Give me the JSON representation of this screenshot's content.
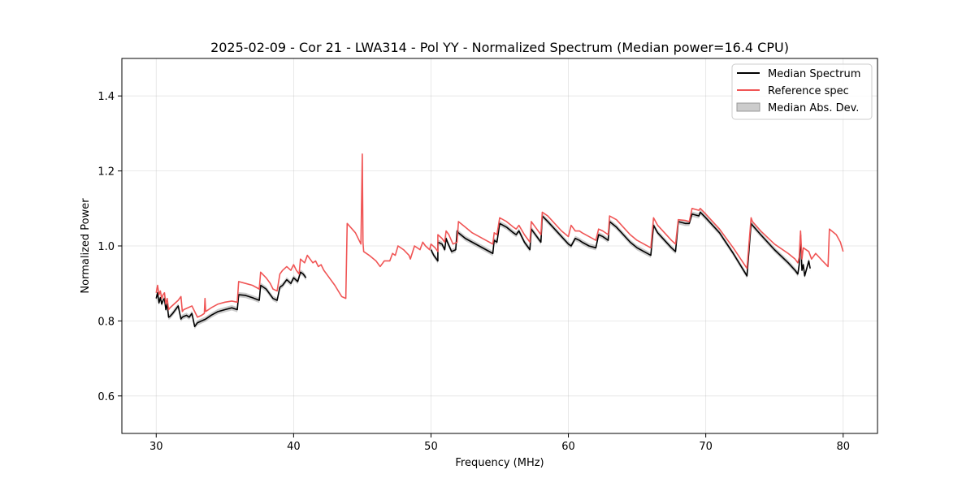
{
  "chart_data": {
    "type": "line",
    "title": "2025-02-09 - Cor 21 - LWA314 - Pol YY - Normalized Spectrum (Median power=16.4 CPU)",
    "xlabel": "Frequency (MHz)",
    "ylabel": "Normalized Power",
    "xlim": [
      27.5,
      82.5
    ],
    "ylim": [
      0.5,
      1.5
    ],
    "xticks": [
      30,
      40,
      50,
      60,
      70,
      80
    ],
    "yticks": [
      0.6,
      0.8,
      1.0,
      1.2,
      1.4
    ],
    "xtick_labels": [
      "30",
      "40",
      "50",
      "60",
      "70",
      "80"
    ],
    "ytick_labels": [
      "0.6",
      "0.8",
      "1.0",
      "1.2",
      "1.4"
    ],
    "grid": true,
    "legend": {
      "placement": "top-right",
      "entries": [
        "Median Spectrum",
        "Reference spec",
        "Median Abs. Dev."
      ]
    },
    "series": [
      {
        "name": "Median Spectrum",
        "color": "#000000",
        "segments": [
          {
            "x": [
              30.0,
              30.1,
              30.2,
              30.3,
              30.4,
              30.5,
              30.6,
              30.7,
              30.8,
              30.9,
              31.0,
              31.2,
              31.4,
              31.6,
              31.8,
              31.9,
              32.0,
              32.2,
              32.4,
              32.6,
              32.8,
              33.0,
              33.3,
              33.6,
              34.0,
              34.5,
              35.0,
              35.5,
              35.9,
              36.0,
              36.5,
              37.0,
              37.5,
              37.6,
              38.0,
              38.3,
              38.5,
              38.8,
              39.0,
              39.2,
              39.5,
              39.8,
              40.0,
              40.3,
              40.5,
              40.7,
              40.9
            ],
            "y": [
              0.86,
              0.875,
              0.848,
              0.862,
              0.845,
              0.855,
              0.86,
              0.83,
              0.845,
              0.81,
              0.812,
              0.82,
              0.83,
              0.84,
              0.805,
              0.81,
              0.812,
              0.815,
              0.81,
              0.82,
              0.785,
              0.795,
              0.8,
              0.805,
              0.815,
              0.825,
              0.83,
              0.835,
              0.83,
              0.87,
              0.868,
              0.862,
              0.855,
              0.895,
              0.885,
              0.87,
              0.86,
              0.855,
              0.89,
              0.895,
              0.91,
              0.9,
              0.915,
              0.905,
              0.93,
              0.925,
              0.915
            ]
          },
          {
            "x": [
              50.0,
              50.2,
              50.5,
              50.5,
              50.8,
              51.0,
              51.1,
              51.2,
              51.5,
              51.8,
              51.9,
              52.0,
              52.5,
              53.0,
              53.5,
              54.0,
              54.5,
              54.6,
              54.8,
              55.0,
              55.5,
              56.0,
              56.2,
              56.4,
              56.8,
              57.2,
              57.3,
              57.5,
              58.0,
              58.1,
              58.5,
              59.0,
              59.5,
              60.0,
              60.2,
              60.5,
              60.8,
              61.0,
              61.5,
              62.0,
              62.2,
              62.5,
              62.9,
              63.0,
              63.5,
              64.0,
              64.5,
              65.0,
              65.5,
              66.0,
              66.2,
              66.5,
              67.0,
              67.5,
              67.8,
              68.0,
              68.5,
              68.8,
              69.0,
              69.5,
              69.6,
              70.0,
              71.0,
              72.0,
              73.0,
              73.3,
              73.4,
              74.0,
              75.0,
              76.0,
              76.5,
              76.7,
              76.8,
              76.9,
              77.0,
              77.1,
              77.2,
              77.5,
              77.6
            ],
            "y": [
              0.99,
              0.975,
              0.96,
              1.01,
              1.005,
              0.99,
              1.02,
              1.01,
              0.985,
              0.99,
              1.04,
              1.035,
              1.02,
              1.01,
              1.0,
              0.99,
              0.98,
              1.015,
              1.01,
              1.06,
              1.05,
              1.035,
              1.03,
              1.04,
              1.01,
              0.99,
              1.045,
              1.035,
              1.01,
              1.08,
              1.065,
              1.045,
              1.025,
              1.005,
              1.0,
              1.02,
              1.015,
              1.01,
              1.0,
              0.995,
              1.03,
              1.025,
              1.015,
              1.065,
              1.05,
              1.03,
              1.01,
              0.995,
              0.985,
              0.975,
              1.055,
              1.035,
              1.015,
              0.995,
              0.985,
              1.065,
              1.06,
              1.06,
              1.085,
              1.08,
              1.09,
              1.075,
              1.035,
              0.98,
              0.92,
              1.06,
              1.055,
              1.03,
              0.99,
              0.955,
              0.935,
              0.925,
              0.95,
              1.03,
              0.935,
              0.95,
              0.92,
              0.96,
              0.94
            ]
          }
        ]
      },
      {
        "name": "Reference spec",
        "color": "#f05555",
        "segments": [
          {
            "x": [
              30.0,
              30.1,
              30.2,
              30.3,
              30.4,
              30.5,
              30.6,
              30.7,
              30.8,
              30.9,
              31.0,
              31.3,
              31.6,
              31.8,
              31.9,
              32.0,
              32.3,
              32.6,
              32.8,
              33.0,
              33.3,
              33.5,
              33.55,
              33.6,
              34.0,
              34.5,
              35.0,
              35.5,
              35.9,
              36.0,
              36.5,
              37.0,
              37.5,
              37.6,
              38.0,
              38.3,
              38.5,
              38.8,
              39.0,
              39.2,
              39.5,
              39.8,
              40.0,
              40.2,
              40.4,
              40.5,
              40.8,
              41.0,
              41.2,
              41.4,
              41.6,
              41.8,
              42.0,
              42.2,
              42.5,
              43.0,
              43.5,
              43.8,
              43.9,
              44.5,
              44.9,
              45.0,
              45.05,
              45.1,
              45.5,
              46.0,
              46.3,
              46.6,
              47.0,
              47.2,
              47.4,
              47.6,
              48.0,
              48.4,
              48.5,
              48.8,
              49.2,
              49.4,
              49.6,
              49.9,
              50.0,
              50.3,
              50.5,
              50.5,
              50.8,
              51.0,
              51.1,
              51.3,
              51.6,
              51.9,
              52.0,
              52.5,
              53.0,
              53.5,
              54.0,
              54.5,
              54.6,
              54.8,
              55.0,
              55.5,
              56.0,
              56.2,
              56.4,
              56.8,
              57.2,
              57.3,
              57.5,
              58.0,
              58.1,
              58.5,
              59.0,
              59.5,
              60.0,
              60.2,
              60.5,
              60.8,
              61.0,
              61.5,
              62.0,
              62.2,
              62.5,
              62.9,
              63.0,
              63.5,
              64.0,
              64.5,
              65.0,
              65.5,
              66.0,
              66.2,
              66.5,
              67.0,
              67.5,
              67.8,
              68.0,
              68.5,
              68.8,
              69.0,
              69.5,
              69.6,
              70.0,
              71.0,
              72.0,
              73.0,
              73.3,
              73.4,
              74.0,
              75.0,
              76.0,
              76.5,
              76.7,
              76.8,
              76.9,
              77.0,
              77.1,
              77.5,
              77.7,
              78.0,
              78.5,
              78.9,
              79.0,
              79.5,
              79.8,
              80.0
            ],
            "y": [
              0.875,
              0.895,
              0.87,
              0.88,
              0.86,
              0.87,
              0.875,
              0.845,
              0.86,
              0.83,
              0.835,
              0.845,
              0.855,
              0.865,
              0.825,
              0.83,
              0.835,
              0.84,
              0.825,
              0.81,
              0.815,
              0.82,
              0.86,
              0.825,
              0.835,
              0.845,
              0.85,
              0.853,
              0.85,
              0.905,
              0.9,
              0.895,
              0.885,
              0.93,
              0.915,
              0.9,
              0.885,
              0.88,
              0.925,
              0.935,
              0.945,
              0.935,
              0.95,
              0.935,
              0.925,
              0.965,
              0.955,
              0.975,
              0.965,
              0.955,
              0.96,
              0.945,
              0.95,
              0.935,
              0.92,
              0.895,
              0.865,
              0.86,
              1.06,
              1.035,
              1.005,
              1.245,
              1.01,
              0.985,
              0.975,
              0.96,
              0.945,
              0.96,
              0.96,
              0.98,
              0.975,
              1.0,
              0.99,
              0.975,
              0.965,
              1.0,
              0.99,
              1.01,
              1.0,
              0.99,
              1.005,
              0.995,
              0.985,
              1.03,
              1.02,
              1.01,
              1.04,
              1.03,
              1.005,
              1.01,
              1.065,
              1.05,
              1.035,
              1.025,
              1.015,
              1.005,
              1.035,
              1.03,
              1.075,
              1.065,
              1.05,
              1.045,
              1.055,
              1.03,
              1.01,
              1.065,
              1.055,
              1.03,
              1.09,
              1.08,
              1.06,
              1.04,
              1.025,
              1.055,
              1.04,
              1.04,
              1.035,
              1.025,
              1.015,
              1.045,
              1.04,
              1.03,
              1.08,
              1.07,
              1.05,
              1.03,
              1.015,
              1.005,
              0.995,
              1.075,
              1.055,
              1.035,
              1.015,
              1.005,
              1.07,
              1.068,
              1.065,
              1.1,
              1.095,
              1.1,
              1.085,
              1.045,
              0.995,
              0.94,
              1.075,
              1.065,
              1.04,
              1.005,
              0.98,
              0.965,
              0.955,
              0.97,
              1.04,
              0.965,
              0.995,
              0.985,
              0.965,
              0.98,
              0.96,
              0.945,
              1.045,
              1.03,
              1.01,
              0.985
            ]
          }
        ]
      }
    ],
    "band": {
      "name": "Median Abs. Dev.",
      "color": "#000000",
      "opacity": 0.2,
      "half_width": 0.007
    }
  }
}
